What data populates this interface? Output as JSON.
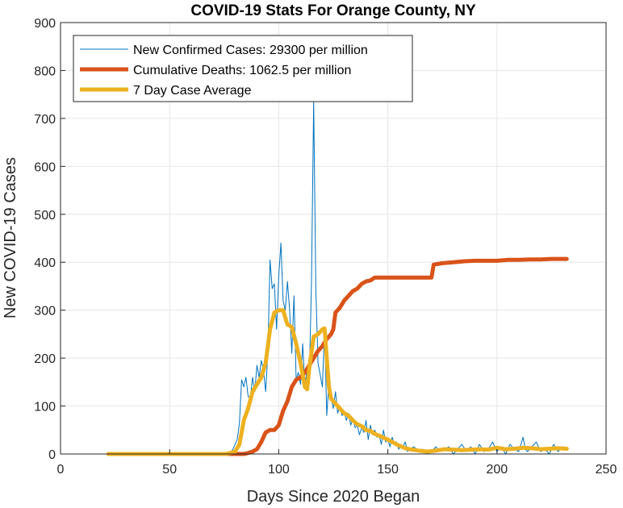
{
  "chart_data": {
    "type": "line",
    "title": "COVID-19 Stats For Orange County, NY",
    "xlabel": "Days Since 2020 Began",
    "ylabel": "New COVID-19 Cases",
    "xlim": [
      0,
      250
    ],
    "ylim": [
      0,
      900
    ],
    "x_ticks": [
      0,
      50,
      100,
      150,
      200,
      250
    ],
    "y_ticks": [
      0,
      100,
      200,
      300,
      400,
      500,
      600,
      700,
      800,
      900
    ],
    "grid": true,
    "legend_position": "top-left",
    "series": [
      {
        "name": "New Confirmed Cases: 29300 per million",
        "color": "#0072BD",
        "style": "thin",
        "points": [
          [
            22,
            0
          ],
          [
            40,
            0
          ],
          [
            60,
            0
          ],
          [
            76,
            0
          ],
          [
            78,
            3
          ],
          [
            79,
            10
          ],
          [
            80,
            20
          ],
          [
            81,
            30
          ],
          [
            82,
            65
          ],
          [
            83,
            155
          ],
          [
            84,
            140
          ],
          [
            85,
            160
          ],
          [
            86,
            120
          ],
          [
            87,
            115
          ],
          [
            88,
            160
          ],
          [
            89,
            130
          ],
          [
            90,
            185
          ],
          [
            91,
            160
          ],
          [
            92,
            195
          ],
          [
            93,
            175
          ],
          [
            94,
            130
          ],
          [
            95,
            210
          ],
          [
            96,
            405
          ],
          [
            97,
            345
          ],
          [
            98,
            355
          ],
          [
            99,
            260
          ],
          [
            100,
            370
          ],
          [
            101,
            440
          ],
          [
            102,
            320
          ],
          [
            103,
            300
          ],
          [
            104,
            360
          ],
          [
            105,
            300
          ],
          [
            106,
            210
          ],
          [
            107,
            330
          ],
          [
            108,
            155
          ],
          [
            109,
            170
          ],
          [
            110,
            145
          ],
          [
            111,
            230
          ],
          [
            112,
            140
          ],
          [
            113,
            180
          ],
          [
            114,
            160
          ],
          [
            115,
            360
          ],
          [
            116,
            735
          ],
          [
            117,
            340
          ],
          [
            118,
            190
          ],
          [
            119,
            165
          ],
          [
            120,
            140
          ],
          [
            121,
            260
          ],
          [
            122,
            80
          ],
          [
            123,
            150
          ],
          [
            124,
            120
          ],
          [
            125,
            95
          ],
          [
            126,
            130
          ],
          [
            127,
            85
          ],
          [
            128,
            100
          ],
          [
            129,
            80
          ],
          [
            130,
            90
          ],
          [
            131,
            70
          ],
          [
            132,
            85
          ],
          [
            133,
            60
          ],
          [
            134,
            75
          ],
          [
            135,
            55
          ],
          [
            136,
            60
          ],
          [
            137,
            40
          ],
          [
            138,
            55
          ],
          [
            139,
            45
          ],
          [
            140,
            70
          ],
          [
            141,
            30
          ],
          [
            142,
            60
          ],
          [
            143,
            40
          ],
          [
            144,
            50
          ],
          [
            145,
            35
          ],
          [
            146,
            40
          ],
          [
            147,
            20
          ],
          [
            148,
            50
          ],
          [
            149,
            25
          ],
          [
            150,
            30
          ],
          [
            151,
            15
          ],
          [
            152,
            35
          ],
          [
            153,
            20
          ],
          [
            154,
            25
          ],
          [
            155,
            10
          ],
          [
            156,
            20
          ],
          [
            157,
            15
          ],
          [
            158,
            25
          ],
          [
            159,
            5
          ],
          [
            160,
            10
          ],
          [
            162,
            15
          ],
          [
            164,
            5
          ],
          [
            166,
            10
          ],
          [
            168,
            0
          ],
          [
            170,
            5
          ],
          [
            172,
            15
          ],
          [
            174,
            5
          ],
          [
            176,
            10
          ],
          [
            178,
            15
          ],
          [
            180,
            0
          ],
          [
            182,
            10
          ],
          [
            184,
            20
          ],
          [
            186,
            5
          ],
          [
            188,
            15
          ],
          [
            190,
            0
          ],
          [
            192,
            20
          ],
          [
            194,
            5
          ],
          [
            196,
            10
          ],
          [
            198,
            25
          ],
          [
            200,
            5
          ],
          [
            202,
            15
          ],
          [
            204,
            0
          ],
          [
            206,
            20
          ],
          [
            208,
            10
          ],
          [
            210,
            5
          ],
          [
            212,
            35
          ],
          [
            213,
            10
          ],
          [
            214,
            5
          ],
          [
            216,
            15
          ],
          [
            218,
            25
          ],
          [
            220,
            5
          ],
          [
            222,
            10
          ],
          [
            224,
            0
          ],
          [
            226,
            20
          ],
          [
            228,
            5
          ],
          [
            230,
            15
          ],
          [
            232,
            10
          ]
        ]
      },
      {
        "name": "Cumulative Deaths: 1062.5 per million",
        "color": "#D95319",
        "style": "thick",
        "points": [
          [
            22,
            0
          ],
          [
            40,
            0
          ],
          [
            60,
            0
          ],
          [
            80,
            0
          ],
          [
            84,
            0
          ],
          [
            86,
            2
          ],
          [
            88,
            5
          ],
          [
            90,
            10
          ],
          [
            92,
            25
          ],
          [
            94,
            45
          ],
          [
            96,
            50
          ],
          [
            98,
            50
          ],
          [
            100,
            60
          ],
          [
            102,
            90
          ],
          [
            104,
            110
          ],
          [
            106,
            140
          ],
          [
            108,
            155
          ],
          [
            110,
            160
          ],
          [
            112,
            170
          ],
          [
            114,
            185
          ],
          [
            116,
            200
          ],
          [
            118,
            215
          ],
          [
            120,
            225
          ],
          [
            122,
            240
          ],
          [
            124,
            250
          ],
          [
            125,
            260
          ],
          [
            126,
            295
          ],
          [
            128,
            305
          ],
          [
            130,
            320
          ],
          [
            132,
            330
          ],
          [
            134,
            340
          ],
          [
            136,
            345
          ],
          [
            138,
            355
          ],
          [
            140,
            360
          ],
          [
            142,
            362
          ],
          [
            144,
            368
          ],
          [
            146,
            368
          ],
          [
            150,
            368
          ],
          [
            155,
            368
          ],
          [
            160,
            368
          ],
          [
            165,
            368
          ],
          [
            170,
            368
          ],
          [
            171,
            395
          ],
          [
            175,
            398
          ],
          [
            180,
            400
          ],
          [
            185,
            402
          ],
          [
            190,
            403
          ],
          [
            195,
            403
          ],
          [
            200,
            403
          ],
          [
            205,
            405
          ],
          [
            210,
            405
          ],
          [
            215,
            406
          ],
          [
            220,
            406
          ],
          [
            225,
            407
          ],
          [
            232,
            407
          ]
        ]
      },
      {
        "name": "7 Day Case Average",
        "color": "#EDB120",
        "style": "thick",
        "points": [
          [
            22,
            0
          ],
          [
            40,
            0
          ],
          [
            60,
            0
          ],
          [
            76,
            0
          ],
          [
            80,
            5
          ],
          [
            82,
            20
          ],
          [
            84,
            70
          ],
          [
            86,
            95
          ],
          [
            88,
            130
          ],
          [
            90,
            145
          ],
          [
            92,
            160
          ],
          [
            94,
            190
          ],
          [
            96,
            260
          ],
          [
            98,
            295
          ],
          [
            100,
            300
          ],
          [
            102,
            300
          ],
          [
            104,
            270
          ],
          [
            106,
            265
          ],
          [
            108,
            230
          ],
          [
            110,
            190
          ],
          [
            112,
            140
          ],
          [
            113,
            135
          ],
          [
            114,
            180
          ],
          [
            116,
            245
          ],
          [
            118,
            250
          ],
          [
            120,
            260
          ],
          [
            121,
            262
          ],
          [
            122,
            200
          ],
          [
            123,
            140
          ],
          [
            124,
            115
          ],
          [
            126,
            105
          ],
          [
            128,
            95
          ],
          [
            130,
            85
          ],
          [
            132,
            80
          ],
          [
            134,
            70
          ],
          [
            136,
            62
          ],
          [
            138,
            58
          ],
          [
            140,
            50
          ],
          [
            142,
            48
          ],
          [
            144,
            42
          ],
          [
            146,
            38
          ],
          [
            148,
            34
          ],
          [
            150,
            30
          ],
          [
            152,
            25
          ],
          [
            154,
            20
          ],
          [
            156,
            16
          ],
          [
            158,
            12
          ],
          [
            160,
            10
          ],
          [
            164,
            7
          ],
          [
            168,
            5
          ],
          [
            172,
            7
          ],
          [
            176,
            10
          ],
          [
            180,
            9
          ],
          [
            184,
            8
          ],
          [
            188,
            9
          ],
          [
            192,
            10
          ],
          [
            196,
            9
          ],
          [
            200,
            13
          ],
          [
            204,
            10
          ],
          [
            208,
            11
          ],
          [
            212,
            13
          ],
          [
            216,
            12
          ],
          [
            220,
            10
          ],
          [
            224,
            11
          ],
          [
            228,
            12
          ],
          [
            232,
            11
          ]
        ]
      }
    ]
  }
}
